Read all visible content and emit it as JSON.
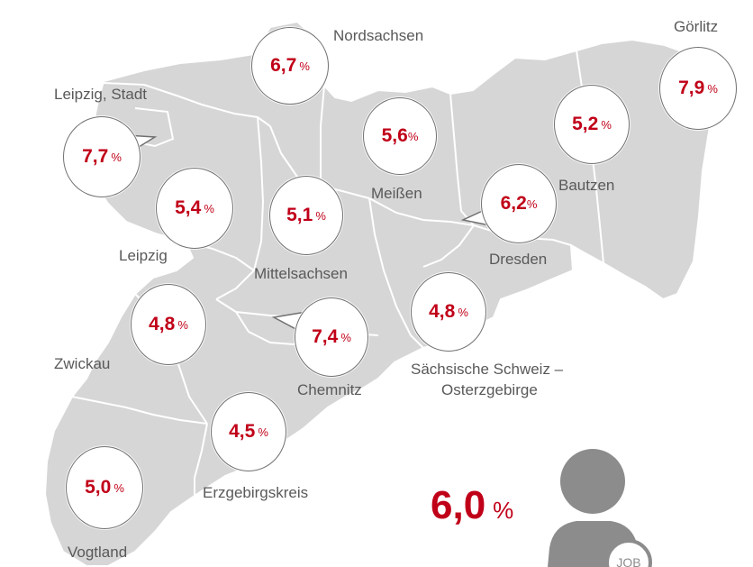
{
  "regions": [
    {
      "id": "nordsachsen",
      "name": "Nordsachsen",
      "value": "6,7",
      "unit": "%"
    },
    {
      "id": "leipzig-stadt",
      "name": "Leipzig, Stadt",
      "value": "7,7",
      "unit": "%"
    },
    {
      "id": "leipzig",
      "name": "Leipzig",
      "value": "5,4",
      "unit": "%"
    },
    {
      "id": "mittelsachsen",
      "name": "Mittelsachsen",
      "value": "5,1",
      "unit": "%"
    },
    {
      "id": "meissen",
      "name": "Meißen",
      "value": "5,6",
      "unit": "%"
    },
    {
      "id": "dresden",
      "name": "Dresden",
      "value": "6,2",
      "unit": "%"
    },
    {
      "id": "bautzen",
      "name": "Bautzen",
      "value": "5,2",
      "unit": "%"
    },
    {
      "id": "goerlitz",
      "name": "Görlitz",
      "value": "7,9",
      "unit": "%"
    },
    {
      "id": "zwickau",
      "name": "Zwickau",
      "value": "4,8",
      "unit": "%"
    },
    {
      "id": "chemnitz",
      "name": "Chemnitz",
      "value": "7,4",
      "unit": "%"
    },
    {
      "id": "saechsische-schweiz",
      "name": "Sächsische Schweiz –",
      "name_line2": "Osterzgebirge",
      "value": "4,8",
      "unit": "%"
    },
    {
      "id": "erzgebirgskreis",
      "name": "Erzgebirgskreis",
      "value": "4,5",
      "unit": "%"
    },
    {
      "id": "vogtland",
      "name": "Vogtland",
      "value": "5,0",
      "unit": "%"
    }
  ],
  "total": {
    "value": "6,0",
    "unit": "%"
  },
  "person_badge": "JOB",
  "colors": {
    "map_fill": "#d6d6d6",
    "border": "#ffffff",
    "value_text": "#c00018",
    "label_text": "#595959",
    "bubble_outline": "#707070",
    "person": "#8c8c8c"
  }
}
